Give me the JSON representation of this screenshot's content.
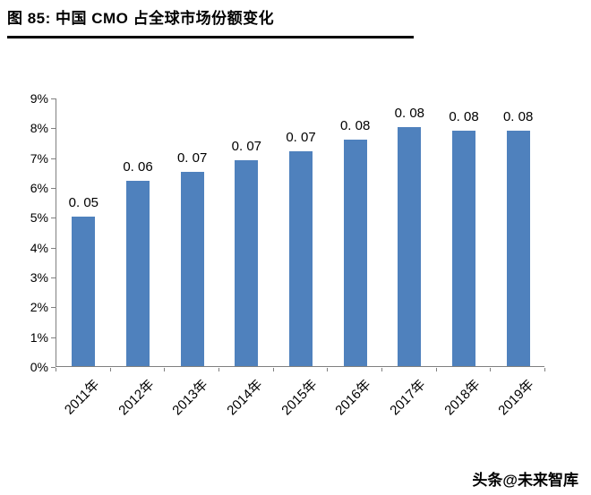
{
  "header": {
    "title": "图 85:  中国 CMO 占全球市场份额变化"
  },
  "chart_data": {
    "type": "bar",
    "title": "中国 CMO 占全球市场份额变化",
    "categories": [
      "2011年",
      "2012年",
      "2013年",
      "2014年",
      "2015年",
      "2016年",
      "2017年",
      "2018年",
      "2019年"
    ],
    "values": [
      5.0,
      6.2,
      6.5,
      6.9,
      7.2,
      7.6,
      8.0,
      7.9,
      7.9
    ],
    "data_labels": [
      "0. 05",
      "0. 06",
      "0. 07",
      "0. 07",
      "0. 07",
      "0. 08",
      "0. 08",
      "0. 08",
      "0. 08"
    ],
    "xlabel": "",
    "ylabel": "",
    "ylim": [
      0,
      9
    ],
    "ytick_labels": [
      "0%",
      "1%",
      "2%",
      "3%",
      "4%",
      "5%",
      "6%",
      "7%",
      "8%",
      "9%"
    ],
    "grid": false,
    "legend": "none",
    "bar_color": "#4F81BD",
    "axis_color": "#808080"
  },
  "footer": {
    "watermark": "头条@未来智库"
  }
}
